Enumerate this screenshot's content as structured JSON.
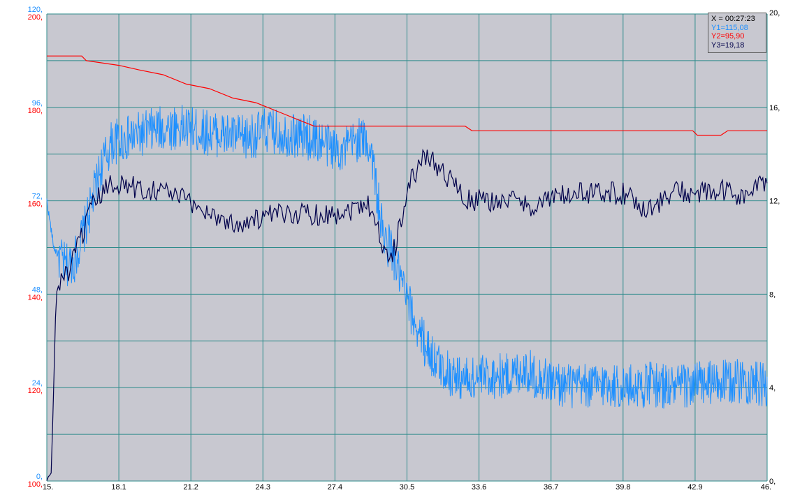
{
  "colors": {
    "plot_bg": "#c8c8d0",
    "grid": "#2e8b8b",
    "y1": "#1e90ff",
    "y2": "#ff0000",
    "y3": "#00004a",
    "right_axis_text": "#000000"
  },
  "readout": {
    "x": "X = 00:27:23",
    "y1": "Y1=115,08",
    "y2": "Y2=95,90",
    "y3": "Y3=19,18"
  },
  "chart_data": {
    "type": "line",
    "title": "",
    "xlabel": "",
    "ylabel": "",
    "xlim": [
      15,
      46
    ],
    "x_tick_labels": [
      "15.",
      "18.1",
      "21.2",
      "24.3",
      "27.4",
      "30.5",
      "33.6",
      "36.7",
      "39.8",
      "42.9",
      "46."
    ],
    "left_axis_y1": {
      "ylim": [
        0,
        120
      ],
      "tick_labels": [
        "120,",
        "96,",
        "72,",
        "48,",
        "24,",
        "0,"
      ]
    },
    "left_axis_y2": {
      "ylim": [
        100,
        200
      ],
      "tick_labels": [
        "200,",
        "180,",
        "160,",
        "140,",
        "120,",
        "100,"
      ]
    },
    "right_axis_y3": {
      "ylim": [
        0,
        20
      ],
      "tick_labels": [
        "20,",
        "16,",
        "12,",
        "8,",
        "4,",
        "0,"
      ]
    },
    "grid": true,
    "series": [
      {
        "name": "Y1",
        "axis": "left_y1",
        "color": "#1e90ff",
        "noise": 6,
        "points": [
          [
            15,
            72
          ],
          [
            15.3,
            60
          ],
          [
            15.8,
            55
          ],
          [
            16.2,
            57
          ],
          [
            16.7,
            66
          ],
          [
            17.3,
            80
          ],
          [
            17.8,
            87
          ],
          [
            18.5,
            88
          ],
          [
            19.5,
            90
          ],
          [
            20.5,
            91
          ],
          [
            21.5,
            90
          ],
          [
            22.5,
            89
          ],
          [
            23.5,
            88
          ],
          [
            24.5,
            90
          ],
          [
            25.5,
            89
          ],
          [
            26.5,
            88
          ],
          [
            27.2,
            86
          ],
          [
            27.8,
            85
          ],
          [
            28.4,
            88
          ],
          [
            28.8,
            87
          ],
          [
            29.0,
            84
          ],
          [
            29.2,
            74
          ],
          [
            29.5,
            62
          ],
          [
            29.8,
            60
          ],
          [
            30.2,
            52
          ],
          [
            30.7,
            43
          ],
          [
            31.2,
            36
          ],
          [
            31.8,
            30
          ],
          [
            32.5,
            27
          ],
          [
            33.2,
            26
          ],
          [
            34,
            27
          ],
          [
            35,
            27
          ],
          [
            35.5,
            29
          ],
          [
            36,
            27
          ],
          [
            37,
            25
          ],
          [
            38,
            24
          ],
          [
            39,
            25
          ],
          [
            40,
            24
          ],
          [
            41,
            25
          ],
          [
            42,
            24
          ],
          [
            43,
            25
          ],
          [
            44,
            25
          ],
          [
            45,
            26
          ],
          [
            46,
            24
          ]
        ]
      },
      {
        "name": "Y2",
        "axis": "left_y2",
        "color": "#ff0000",
        "points": [
          [
            15,
            191
          ],
          [
            16.5,
            191
          ],
          [
            16.7,
            190
          ],
          [
            18.1,
            189
          ],
          [
            19,
            188
          ],
          [
            20,
            187
          ],
          [
            21,
            185
          ],
          [
            22,
            184
          ],
          [
            23,
            182
          ],
          [
            24,
            181
          ],
          [
            25,
            179
          ],
          [
            26,
            177
          ],
          [
            26.5,
            176
          ],
          [
            27.4,
            176
          ],
          [
            30,
            176
          ],
          [
            31,
            176
          ],
          [
            33,
            176
          ],
          [
            33.3,
            175
          ],
          [
            35,
            175
          ],
          [
            37,
            175
          ],
          [
            40,
            175
          ],
          [
            42.8,
            175
          ],
          [
            43,
            174
          ],
          [
            44,
            174
          ],
          [
            44.3,
            175
          ],
          [
            46,
            175
          ]
        ]
      },
      {
        "name": "Y3",
        "axis": "right_y3",
        "color": "#00004a",
        "noise": 0.5,
        "points": [
          [
            15,
            0
          ],
          [
            15.2,
            0.4
          ],
          [
            15.4,
            8
          ],
          [
            15.6,
            8.7
          ],
          [
            16,
            9
          ],
          [
            16.5,
            10.5
          ],
          [
            17,
            11.8
          ],
          [
            17.5,
            12.5
          ],
          [
            18,
            12.8
          ],
          [
            19,
            12.5
          ],
          [
            20,
            12.5
          ],
          [
            21,
            12
          ],
          [
            22,
            11.5
          ],
          [
            23,
            11
          ],
          [
            24,
            11.2
          ],
          [
            25,
            11.4
          ],
          [
            26,
            11.5
          ],
          [
            27,
            11.4
          ],
          [
            28,
            11.6
          ],
          [
            28.8,
            12
          ],
          [
            29.2,
            11
          ],
          [
            29.6,
            9.5
          ],
          [
            30,
            10
          ],
          [
            30.5,
            12.5
          ],
          [
            31,
            13.5
          ],
          [
            31.4,
            14
          ],
          [
            31.8,
            13.5
          ],
          [
            32.5,
            12.8
          ],
          [
            33,
            12
          ],
          [
            34,
            12
          ],
          [
            35,
            12
          ],
          [
            36,
            11.8
          ],
          [
            37,
            12.2
          ],
          [
            38,
            12.3
          ],
          [
            39,
            12.4
          ],
          [
            39.8,
            12.3
          ],
          [
            40.5,
            11.8
          ],
          [
            41,
            11.7
          ],
          [
            41.5,
            12
          ],
          [
            42,
            12.4
          ],
          [
            43,
            12.3
          ],
          [
            44,
            12.4
          ],
          [
            45,
            12.2
          ],
          [
            46,
            12.8
          ]
        ]
      }
    ]
  }
}
